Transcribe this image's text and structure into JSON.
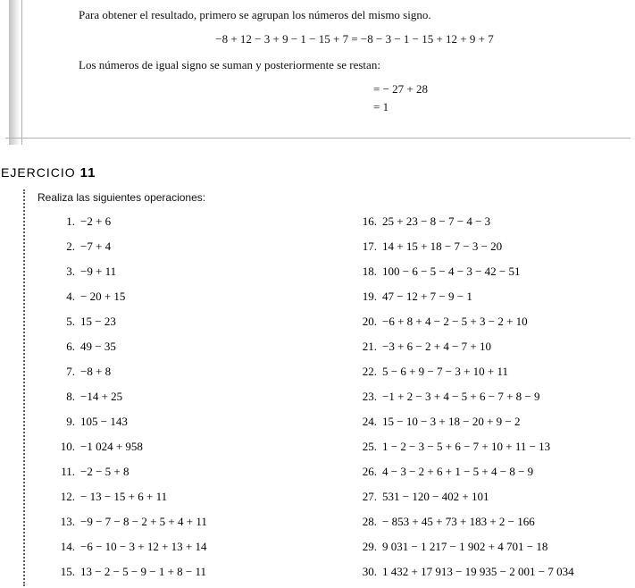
{
  "example": {
    "intro": "Para obtener el resultado, primero se agrupan los números del mismo signo.",
    "expr": "−8 + 12 − 3 + 9 − 1 − 15 + 7 = −8 − 3 − 1 − 15 + 12 + 9 + 7",
    "note": "Los números de igual signo se suman y posteriormente se restan:",
    "step1": "= − 27 + 28",
    "step2": "= 1"
  },
  "exercise": {
    "label": "EJERCICIO",
    "number": "11",
    "instruction": "Realiza las siguientes operaciones:"
  },
  "col1": [
    {
      "n": "1.",
      "t": "−2 + 6"
    },
    {
      "n": "2.",
      "t": "−7 + 4"
    },
    {
      "n": "3.",
      "t": "−9 + 11"
    },
    {
      "n": "4.",
      "t": "− 20 + 15"
    },
    {
      "n": "5.",
      "t": "15 − 23"
    },
    {
      "n": "6.",
      "t": "49 − 35"
    },
    {
      "n": "7.",
      "t": "−8 + 8"
    },
    {
      "n": "8.",
      "t": "−14 + 25"
    },
    {
      "n": "9.",
      "t": "105 − 143"
    },
    {
      "n": "10.",
      "t": "−1 024 + 958"
    },
    {
      "n": "11.",
      "t": "−2 − 5 + 8"
    },
    {
      "n": "12.",
      "t": "− 13 − 15 + 6 + 11"
    },
    {
      "n": "13.",
      "t": "−9 − 7 − 8 − 2 + 5 + 4 + 11"
    },
    {
      "n": "14.",
      "t": "−6 − 10 − 3 + 12 + 13 + 14"
    },
    {
      "n": "15.",
      "t": "13 − 2 − 5 − 9 − 1 + 8 − 11"
    }
  ],
  "col2": [
    {
      "n": "16.",
      "t": "25 + 23 − 8 − 7 − 4 − 3"
    },
    {
      "n": "17.",
      "t": "14 + 15 + 18 − 7 − 3 − 20"
    },
    {
      "n": "18.",
      "t": "100 − 6 − 5 − 4 − 3 − 42 − 51"
    },
    {
      "n": "19.",
      "t": "47 − 12 + 7 − 9 − 1"
    },
    {
      "n": "20.",
      "t": "−6 + 8 + 4 − 2 − 5 + 3 − 2 + 10"
    },
    {
      "n": "21.",
      "t": "−3 + 6 − 2 + 4 − 7 + 10"
    },
    {
      "n": "22.",
      "t": "5 − 6 + 9 − 7 − 3 + 10 + 11"
    },
    {
      "n": "23.",
      "t": "−1 + 2 − 3 + 4 − 5 + 6 − 7 + 8 − 9"
    },
    {
      "n": "24.",
      "t": "15 − 10 − 3 + 18 − 20 + 9 − 2"
    },
    {
      "n": "25.",
      "t": "1 − 2 − 3 − 5 + 6 − 7 + 10 + 11 − 13"
    },
    {
      "n": "26.",
      "t": "4 − 3 − 2 + 6 + 1 − 5 + 4 − 8 − 9"
    },
    {
      "n": "27.",
      "t": "531 − 120 − 402 + 101"
    },
    {
      "n": "28.",
      "t": "− 853 + 45 + 73 + 183 + 2 − 166"
    },
    {
      "n": "29.",
      "t": "9 031 − 1 217 − 1 902 + 4 701 − 18"
    },
    {
      "n": "30.",
      "t": "1 432 + 17 913 − 19 935 − 2 001 − 7 034"
    }
  ]
}
